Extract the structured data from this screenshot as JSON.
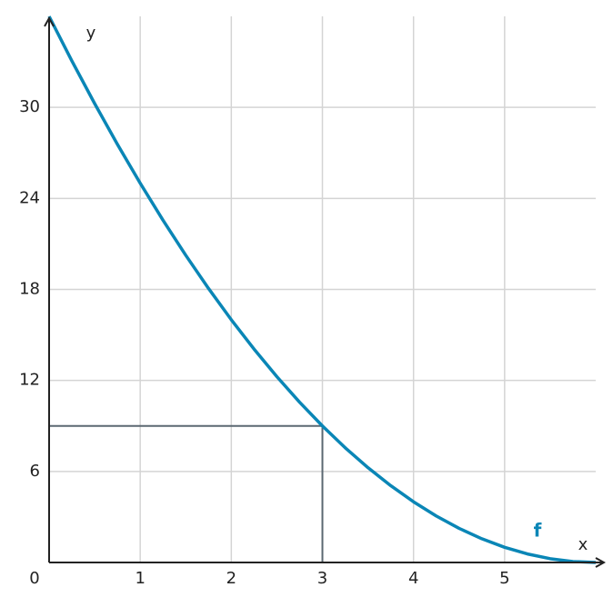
{
  "chart_data": {
    "type": "line",
    "x_label": "x",
    "y_label": "y",
    "x": [
      0,
      0.25,
      0.5,
      0.75,
      1,
      1.25,
      1.5,
      1.75,
      2,
      2.25,
      2.5,
      2.75,
      3,
      3.25,
      3.5,
      3.75,
      4,
      4.25,
      4.5,
      4.75,
      5,
      5.25,
      5.5,
      5.75,
      6
    ],
    "series": [
      {
        "name": "f",
        "color": "#0a86b6",
        "values": [
          36,
          33.0625,
          30.25,
          27.5625,
          25,
          22.5625,
          20.25,
          18.0625,
          16,
          14.0625,
          12.25,
          10.5625,
          9,
          7.5625,
          6.25,
          5.0625,
          4,
          3.0625,
          2.25,
          1.5625,
          1,
          0.5625,
          0.25,
          0.0625,
          0
        ]
      }
    ],
    "highlight_point": {
      "x": 3,
      "y": 9,
      "color": "#5b6872"
    },
    "xlim": [
      0,
      6
    ],
    "ylim": [
      0,
      36
    ],
    "xticks": [
      0,
      1,
      2,
      3,
      4,
      5
    ],
    "yticks": [
      6,
      12,
      18,
      24,
      30
    ],
    "grid": true
  }
}
